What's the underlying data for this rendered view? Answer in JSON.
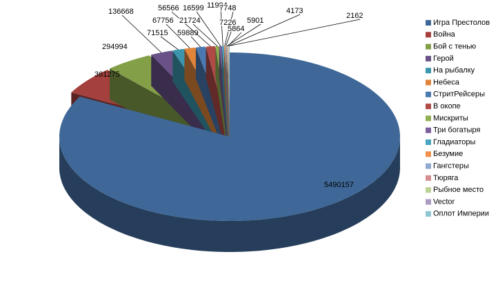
{
  "chart_data": {
    "type": "pie3d",
    "categories": [
      "Игра Престолов",
      "Война",
      "Бой с тенью",
      "Герой",
      "На рыбалку",
      "Небеса",
      "СтритРейсеры",
      "В окопе",
      "Мискриты",
      "Три богатыря",
      "Гладиаторы",
      "Безумие",
      "Гангстеры",
      "Тюряга",
      "Рыбное место",
      "Vector",
      "Оплот Империи"
    ],
    "values": [
      5490157,
      361275,
      294994,
      136668,
      71515,
      67756,
      59889,
      56566,
      21724,
      16599,
      11994,
      7748,
      7226,
      5901,
      5864,
      4173,
      2162
    ],
    "colors": [
      "#3f6898",
      "#a4403d",
      "#83a048",
      "#6a5289",
      "#3c95ad",
      "#e0843a",
      "#4a78b0",
      "#b04a47",
      "#8fb050",
      "#7a5f9c",
      "#4aa5bf",
      "#f0904a",
      "#8eaad0",
      "#d49090",
      "#bcd294",
      "#aa9bc2",
      "#8ec6d6"
    ],
    "legend": "right"
  }
}
